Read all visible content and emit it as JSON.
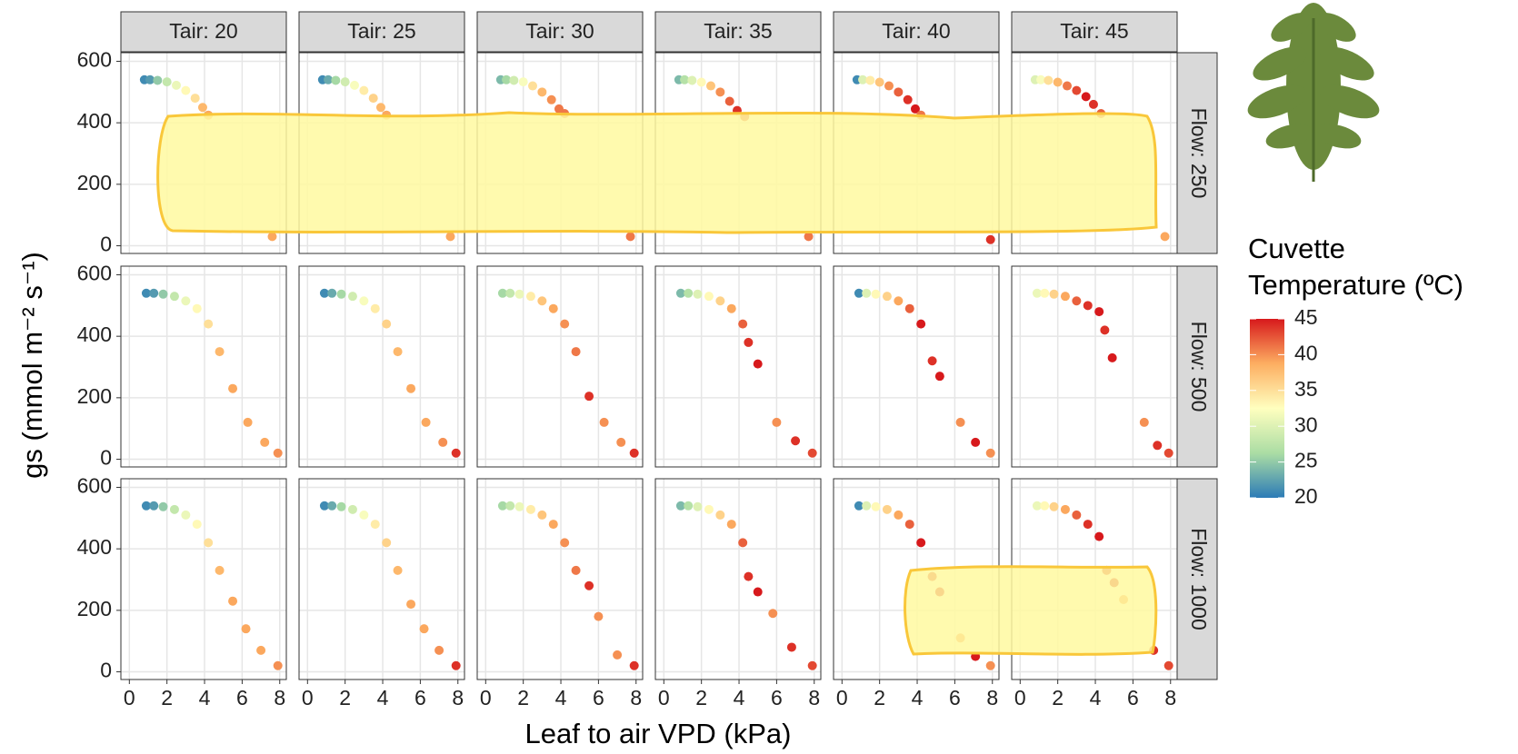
{
  "chart_data": {
    "type": "scatter",
    "x_label": "Leaf to air VPD (kPa)",
    "y_label": "gs (mmol m⁻² s⁻¹)",
    "xlim": [
      -0.45,
      8.35
    ],
    "xticks": [
      0,
      2,
      4,
      6,
      8
    ],
    "ylim": [
      -25,
      628
    ],
    "yticks": [
      0,
      200,
      400,
      600
    ],
    "grid": true,
    "legend_title": [
      "Cuvette",
      "Temperature (ºC)"
    ],
    "color_lim": [
      20,
      45
    ],
    "color_ticks": [
      20,
      25,
      30,
      35,
      40,
      45
    ],
    "colors": [
      "#2c7bb6",
      "#abdda4",
      "#ffffbf",
      "#fdae61",
      "#d7191c"
    ],
    "columns": [
      "Tair: 20",
      "Tair: 25",
      "Tair: 30",
      "Tair: 35",
      "Tair: 40",
      "Tair: 45"
    ],
    "rows": [
      {
        "label": "Flow: 250",
        "panels": [
          {
            "x": [
              0.8,
              1.1,
              1.5,
              2.0,
              2.5,
              3.0,
              3.5,
              3.9,
              4.2,
              7.6
            ],
            "y": [
              540,
              540,
              538,
              533,
              522,
              505,
              480,
              450,
              425,
              30
            ],
            "temp": [
              21,
              22,
              25,
              28,
              31,
              33,
              35,
              38,
              39,
              39
            ]
          },
          {
            "x": [
              0.8,
              1.1,
              1.5,
              2.0,
              2.5,
              3.0,
              3.5,
              3.9,
              4.2,
              7.6
            ],
            "y": [
              540,
              540,
              538,
              533,
              522,
              505,
              480,
              450,
              425,
              30
            ],
            "temp": [
              21,
              23,
              26,
              29,
              32,
              34,
              36,
              38,
              39,
              39
            ]
          },
          {
            "x": [
              0.8,
              1.1,
              1.5,
              2.0,
              2.5,
              3.0,
              3.5,
              3.9,
              4.2,
              7.7
            ],
            "y": [
              540,
              540,
              538,
              533,
              520,
              500,
              475,
              445,
              430,
              30
            ],
            "temp": [
              24,
              26,
              29,
              32,
              35,
              38,
              40,
              41,
              41,
              41
            ]
          },
          {
            "x": [
              0.8,
              1.1,
              1.5,
              2.0,
              2.5,
              3.0,
              3.5,
              3.9,
              4.3,
              7.7
            ],
            "y": [
              540,
              540,
              538,
              532,
              520,
              500,
              470,
              440,
              420,
              30
            ],
            "temp": [
              24,
              27,
              30,
              33,
              37,
              40,
              42,
              44,
              43,
              41
            ]
          },
          {
            "x": [
              0.8,
              1.1,
              1.5,
              2.0,
              2.5,
              3.0,
              3.5,
              3.9,
              4.2,
              7.9
            ],
            "y": [
              540,
              540,
              538,
              532,
              520,
              500,
              475,
              445,
              425,
              20
            ],
            "temp": [
              21,
              30,
              34,
              37,
              40,
              42,
              44,
              45,
              41,
              44
            ]
          },
          {
            "x": [
              0.8,
              1.1,
              1.5,
              2.0,
              2.5,
              3.0,
              3.5,
              3.9,
              4.3,
              7.7
            ],
            "y": [
              540,
              540,
              538,
              532,
              520,
              505,
              485,
              460,
              430,
              30
            ],
            "temp": [
              30,
              32,
              35,
              38,
              41,
              43,
              45,
              44,
              42,
              39
            ]
          }
        ]
      },
      {
        "label": "Flow: 500",
        "panels": [
          {
            "x": [
              0.9,
              1.3,
              1.8,
              2.4,
              3.0,
              3.6,
              4.2,
              4.8,
              5.5,
              6.3,
              7.2,
              7.9
            ],
            "y": [
              540,
              540,
              537,
              530,
              515,
              490,
              440,
              350,
              230,
              120,
              55,
              20
            ],
            "temp": [
              21,
              22,
              25,
              28,
              31,
              33,
              35,
              38,
              39,
              39,
              39,
              40
            ]
          },
          {
            "x": [
              0.9,
              1.3,
              1.8,
              2.4,
              3.0,
              3.6,
              4.2,
              4.8,
              5.5,
              6.3,
              7.2,
              7.9
            ],
            "y": [
              540,
              540,
              537,
              530,
              515,
              490,
              440,
              350,
              230,
              120,
              55,
              20
            ],
            "temp": [
              21,
              23,
              26,
              29,
              32,
              34,
              36,
              38,
              39,
              39,
              40,
              44
            ]
          },
          {
            "x": [
              0.9,
              1.3,
              1.8,
              2.4,
              3.0,
              3.6,
              4.2,
              4.8,
              5.5,
              6.3,
              7.2,
              7.9
            ],
            "y": [
              540,
              540,
              537,
              530,
              515,
              490,
              440,
              350,
              205,
              120,
              55,
              20
            ],
            "temp": [
              26,
              28,
              31,
              34,
              37,
              39,
              40,
              41,
              44,
              40,
              40,
              44
            ]
          },
          {
            "x": [
              0.9,
              1.3,
              1.8,
              2.4,
              3.0,
              3.6,
              4.2,
              4.5,
              5.0,
              6.0,
              7.0,
              7.9
            ],
            "y": [
              540,
              540,
              537,
              530,
              515,
              490,
              440,
              380,
              310,
              120,
              60,
              20
            ],
            "temp": [
              24,
              27,
              30,
              33,
              36,
              39,
              42,
              44,
              45,
              40,
              44,
              43
            ]
          },
          {
            "x": [
              0.9,
              1.3,
              1.8,
              2.4,
              3.0,
              3.6,
              4.2,
              4.8,
              5.2,
              6.3,
              7.1,
              7.9
            ],
            "y": [
              540,
              540,
              537,
              530,
              515,
              490,
              440,
              320,
              270,
              120,
              55,
              20
            ],
            "temp": [
              21,
              30,
              33,
              36,
              39,
              42,
              45,
              44,
              45,
              40,
              45,
              40
            ]
          },
          {
            "x": [
              0.9,
              1.3,
              1.8,
              2.4,
              3.0,
              3.6,
              4.2,
              4.5,
              4.9,
              6.6,
              7.3,
              7.9
            ],
            "y": [
              540,
              540,
              537,
              530,
              515,
              500,
              480,
              420,
              330,
              120,
              45,
              20
            ],
            "temp": [
              31,
              33,
              36,
              39,
              42,
              44,
              45,
              44,
              45,
              40,
              44,
              43
            ]
          }
        ]
      },
      {
        "label": "Flow: 1000",
        "panels": [
          {
            "x": [
              0.9,
              1.3,
              1.8,
              2.4,
              3.0,
              3.6,
              4.2,
              4.8,
              5.5,
              6.2,
              7.0,
              7.9
            ],
            "y": [
              540,
              540,
              537,
              528,
              510,
              480,
              420,
              330,
              230,
              140,
              70,
              20
            ],
            "temp": [
              21,
              22,
              25,
              28,
              31,
              33,
              35,
              38,
              39,
              39,
              39,
              40
            ]
          },
          {
            "x": [
              0.9,
              1.3,
              1.8,
              2.4,
              3.0,
              3.6,
              4.2,
              4.8,
              5.5,
              6.2,
              7.0,
              7.9
            ],
            "y": [
              540,
              540,
              537,
              528,
              510,
              480,
              420,
              330,
              220,
              140,
              70,
              20
            ],
            "temp": [
              21,
              23,
              26,
              29,
              32,
              34,
              36,
              38,
              39,
              39,
              40,
              44
            ]
          },
          {
            "x": [
              0.9,
              1.3,
              1.8,
              2.4,
              3.0,
              3.6,
              4.2,
              4.8,
              5.5,
              6.0,
              7.0,
              7.9
            ],
            "y": [
              540,
              540,
              537,
              528,
              510,
              480,
              420,
              330,
              280,
              180,
              55,
              20
            ],
            "temp": [
              26,
              28,
              31,
              34,
              37,
              39,
              40,
              41,
              44,
              40,
              40,
              44
            ]
          },
          {
            "x": [
              0.9,
              1.3,
              1.8,
              2.4,
              3.0,
              3.6,
              4.2,
              4.5,
              5.0,
              5.8,
              6.8,
              7.9
            ],
            "y": [
              540,
              540,
              537,
              528,
              510,
              480,
              420,
              310,
              260,
              190,
              80,
              20
            ],
            "temp": [
              24,
              27,
              30,
              33,
              36,
              39,
              42,
              44,
              45,
              40,
              44,
              43
            ]
          },
          {
            "x": [
              0.9,
              1.3,
              1.8,
              2.4,
              3.0,
              3.6,
              4.2,
              4.8,
              5.2,
              6.3,
              7.1,
              7.9
            ],
            "y": [
              540,
              540,
              537,
              528,
              510,
              480,
              420,
              310,
              260,
              110,
              50,
              20
            ],
            "temp": [
              21,
              30,
              33,
              36,
              39,
              42,
              45,
              44,
              45,
              40,
              45,
              40
            ]
          },
          {
            "x": [
              0.9,
              1.3,
              1.8,
              2.4,
              3.0,
              3.6,
              4.2,
              4.6,
              5.0,
              5.5,
              7.1,
              7.9
            ],
            "y": [
              540,
              540,
              537,
              528,
              510,
              480,
              440,
              330,
              290,
              235,
              70,
              20
            ],
            "temp": [
              31,
              33,
              36,
              39,
              42,
              44,
              45,
              44,
              45,
              40,
              44,
              43
            ]
          }
        ]
      }
    ]
  }
}
